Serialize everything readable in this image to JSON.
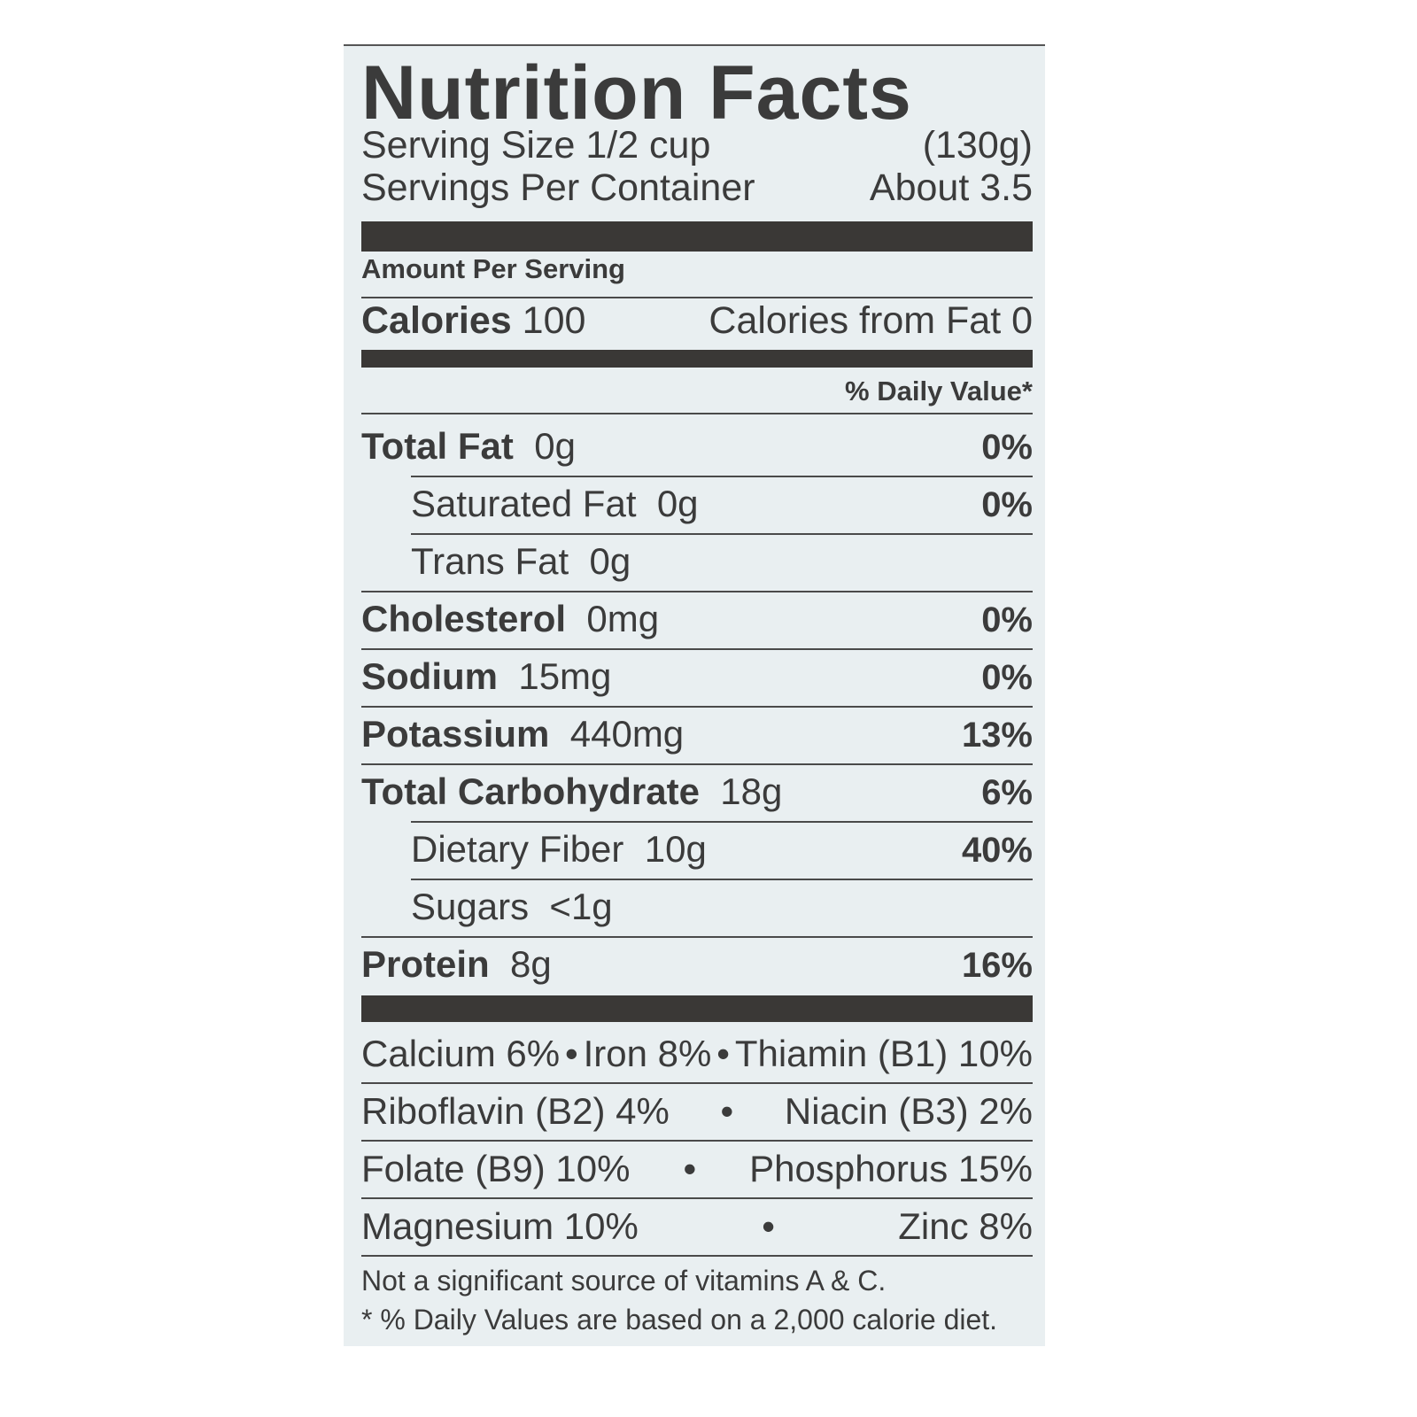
{
  "title": "Nutrition Facts",
  "serving_size": {
    "label": "Serving Size 1/2 cup",
    "value": "(130g)"
  },
  "servings_per_container": {
    "label": "Servings Per Container",
    "value": "About 3.5"
  },
  "amount_per_serving": "Amount Per Serving",
  "calories": {
    "label": "Calories",
    "value": "100",
    "from_fat": "Calories from Fat 0"
  },
  "daily_value_header": "% Daily Value*",
  "nutrients": [
    {
      "name": "Total Fat",
      "amount": "0g",
      "dv": "0%",
      "sub": false
    },
    {
      "name": "Saturated Fat",
      "amount": "0g",
      "dv": "0%",
      "sub": true
    },
    {
      "name": "Trans Fat",
      "amount": "0g",
      "dv": "",
      "sub": true
    },
    {
      "name": "Cholesterol",
      "amount": "0mg",
      "dv": "0%",
      "sub": false
    },
    {
      "name": "Sodium",
      "amount": "15mg",
      "dv": "0%",
      "sub": false
    },
    {
      "name": "Potassium",
      "amount": "440mg",
      "dv": "13%",
      "sub": false
    },
    {
      "name": "Total Carbohydrate",
      "amount": "18g",
      "dv": "6%",
      "sub": false
    },
    {
      "name": "Dietary Fiber",
      "amount": "10g",
      "dv": "40%",
      "sub": true
    },
    {
      "name": "Sugars",
      "amount": "<1g",
      "dv": "",
      "sub": true
    },
    {
      "name": "Protein",
      "amount": "8g",
      "dv": "16%",
      "sub": false
    }
  ],
  "vitamins": [
    [
      "Calcium 6%",
      "•",
      "Iron 8%",
      "•",
      "Thiamin (B1) 10%"
    ],
    [
      "Riboflavin (B2) 4%",
      "•",
      "Niacin (B3) 2%"
    ],
    [
      "Folate (B9) 10%",
      "•",
      "Phosphorus 15%"
    ],
    [
      "Magnesium 10%",
      "•",
      "Zinc 8%"
    ]
  ],
  "footnotes": [
    "Not a significant source of vitamins A & C.",
    "* % Daily Values are based on a 2,000 calorie diet."
  ]
}
